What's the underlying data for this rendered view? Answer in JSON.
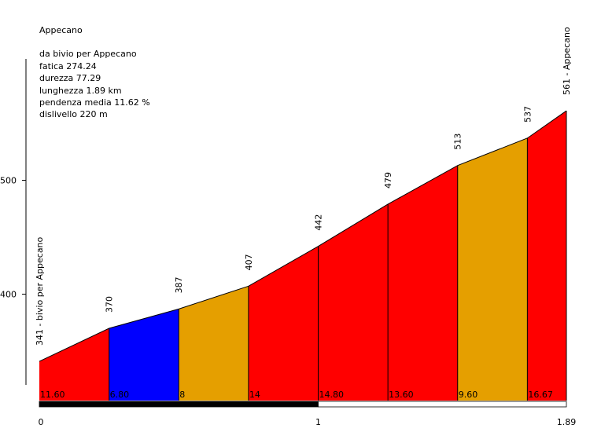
{
  "chart_data": {
    "type": "area",
    "title": "Appecano",
    "stats": [
      "da bivio per Appecano",
      "fatica 274.24",
      "durezza 77.29",
      "lunghezza 1.89 km",
      "pendenza media 11.62 %",
      "dislivello 220 m"
    ],
    "x_unit": "km",
    "xlim": [
      0,
      1.89
    ],
    "x_ticks": [
      "0",
      "1",
      "1.89"
    ],
    "ylim": [
      320,
      610
    ],
    "y_ticks": [
      400,
      500
    ],
    "start_label": "341 - bivio per Appecano",
    "end_label": "561 - Appecano",
    "points": [
      {
        "x": 0.0,
        "elev": 341,
        "label": ""
      },
      {
        "x": 0.25,
        "elev": 370,
        "label": "370"
      },
      {
        "x": 0.5,
        "elev": 387,
        "label": "387"
      },
      {
        "x": 0.75,
        "elev": 407,
        "label": "407"
      },
      {
        "x": 1.0,
        "elev": 442,
        "label": "442"
      },
      {
        "x": 1.25,
        "elev": 479,
        "label": "479"
      },
      {
        "x": 1.5,
        "elev": 513,
        "label": "513"
      },
      {
        "x": 1.75,
        "elev": 537,
        "label": "537"
      },
      {
        "x": 1.89,
        "elev": 561,
        "label": ""
      }
    ],
    "segments": [
      {
        "gradient": "11.60",
        "color": "#ff0000"
      },
      {
        "gradient": "6.80",
        "color": "#0000ff"
      },
      {
        "gradient": "8",
        "color": "#e59f00"
      },
      {
        "gradient": "14",
        "color": "#ff0000"
      },
      {
        "gradient": "14.80",
        "color": "#ff0000"
      },
      {
        "gradient": "13.60",
        "color": "#ff0000"
      },
      {
        "gradient": "9.60",
        "color": "#e59f00"
      },
      {
        "gradient": "16.67",
        "color": "#ff0000"
      }
    ],
    "km_bar": [
      {
        "from": 0,
        "to": 1,
        "color": "#000000"
      },
      {
        "from": 1,
        "to": 1.89,
        "color": "#ffffff"
      }
    ]
  }
}
